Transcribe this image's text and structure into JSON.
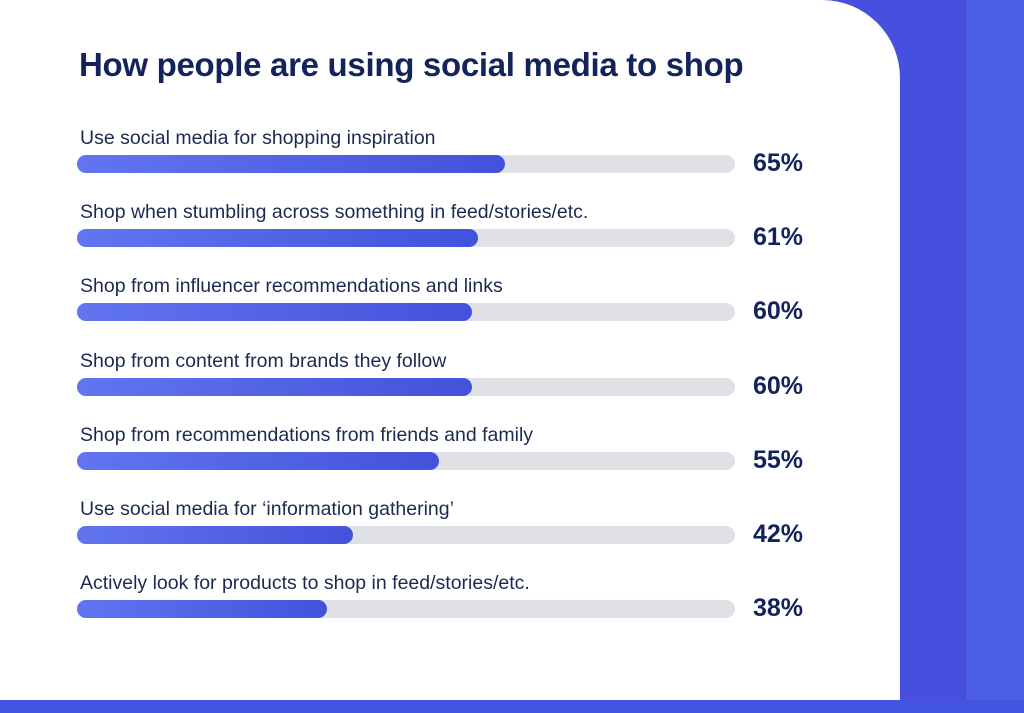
{
  "chart_data": {
    "type": "bar",
    "orientation": "horizontal",
    "title": "How people are using social media to shop",
    "xlabel": "",
    "ylabel": "",
    "xlim": [
      0,
      100
    ],
    "unit": "%",
    "categories": [
      "Use social media for shopping inspiration",
      "Shop when stumbling across something in feed/stories/etc.",
      "Shop from influencer recommendations and links",
      "Shop from content from brands they follow",
      "Shop from recommendations from friends and family",
      "Use social media for ‘information gathering’",
      "Actively look for products to shop in feed/stories/etc."
    ],
    "values": [
      65,
      61,
      60,
      60,
      55,
      42,
      38
    ],
    "value_labels": [
      "65%",
      "61%",
      "60%",
      "60%",
      "55%",
      "42%",
      "38%"
    ],
    "colors": {
      "bar": "#4a5ae3",
      "track": "#e0e1e6",
      "title": "#13235b",
      "background": "#4750de"
    }
  }
}
